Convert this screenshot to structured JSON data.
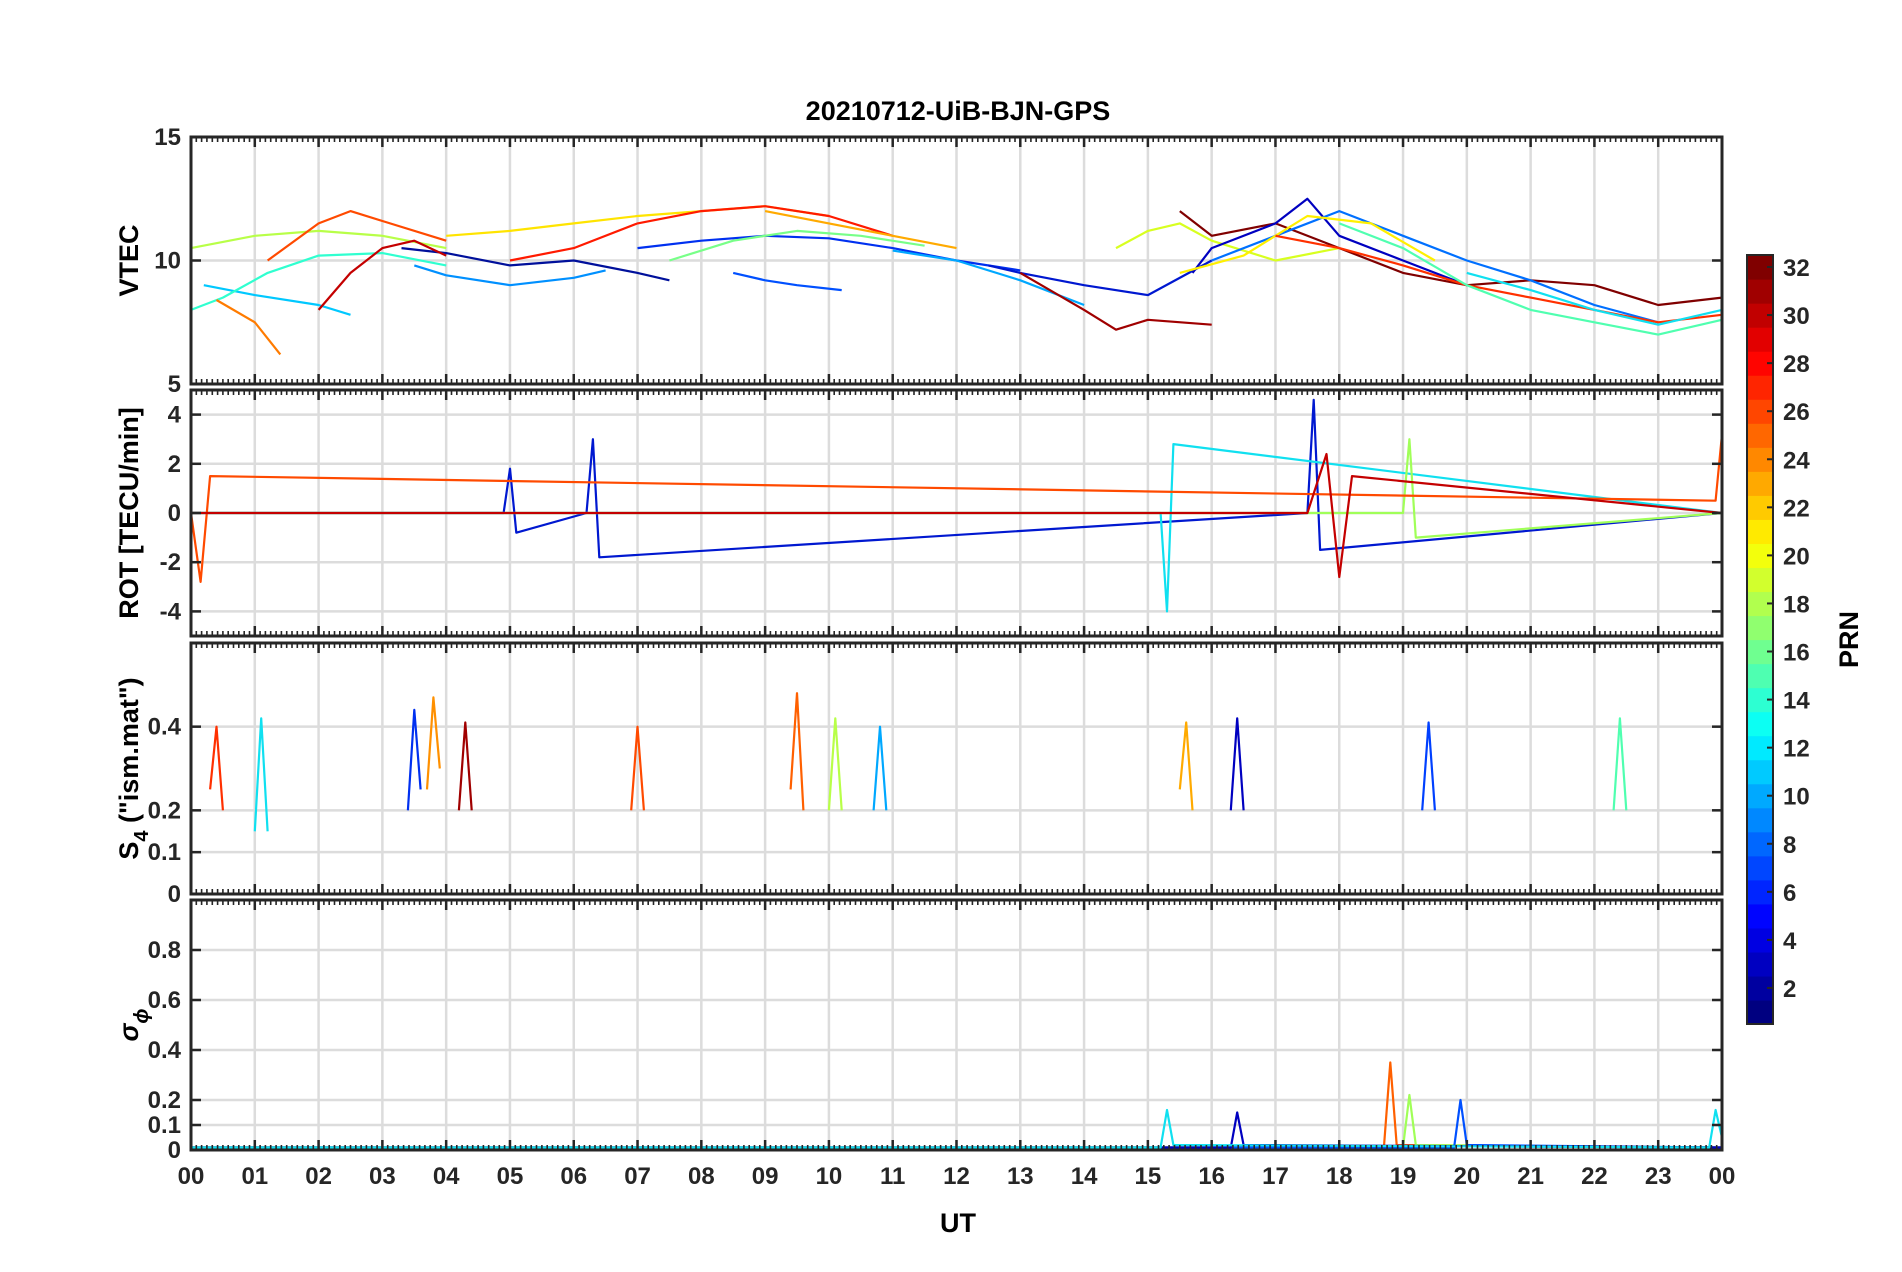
{
  "figure": {
    "title": "20210712-UiB-BJN-GPS"
  },
  "chart_data": {
    "type": "line",
    "title": "20210712-UiB-BJN-GPS",
    "x": {
      "label": "UT",
      "range": [
        0,
        24
      ],
      "ticks": [
        0,
        1,
        2,
        3,
        4,
        5,
        6,
        7,
        8,
        9,
        10,
        11,
        12,
        13,
        14,
        15,
        16,
        17,
        18,
        19,
        20,
        21,
        22,
        23,
        24
      ],
      "tick_labels": [
        "00",
        "01",
        "02",
        "03",
        "04",
        "05",
        "06",
        "07",
        "08",
        "09",
        "10",
        "11",
        "12",
        "13",
        "14",
        "15",
        "16",
        "17",
        "18",
        "19",
        "20",
        "21",
        "22",
        "23",
        "00"
      ]
    },
    "panels": [
      {
        "key": "vtec",
        "ylabel": "VTEC",
        "ylim": [
          5,
          15
        ],
        "yticks": [
          5,
          10,
          15
        ],
        "ytick_labels": [
          "5",
          "10",
          "15"
        ],
        "series": [
          {
            "prn": 2,
            "color": "#00109b",
            "x": [
              3.3,
              4,
              5,
              6,
              7,
              7.5
            ],
            "y": [
              10.5,
              10.3,
              9.8,
              10.0,
              9.5,
              9.2
            ]
          },
          {
            "prn": 6,
            "color": "#0050ff",
            "x": [
              8.5,
              9,
              9.5,
              10.2
            ],
            "y": [
              9.5,
              9.2,
              9.0,
              8.8
            ]
          },
          {
            "prn": 12,
            "color": "#00c8ff",
            "x": [
              0.2,
              1,
              2,
              2.5
            ],
            "y": [
              9.0,
              8.6,
              8.2,
              7.8
            ]
          },
          {
            "prn": 14,
            "color": "#30ffd0",
            "x": [
              0,
              0.5,
              1.2,
              2,
              3,
              4
            ],
            "y": [
              8.0,
              8.5,
              9.5,
              10.2,
              10.3,
              9.8
            ]
          },
          {
            "prn": 18,
            "color": "#b8ff48",
            "x": [
              0,
              1,
              2,
              3,
              4
            ],
            "y": [
              10.5,
              11.0,
              11.2,
              11.0,
              10.5
            ]
          },
          {
            "prn": 24,
            "color": "#ff7b00",
            "x": [
              0.4,
              1,
              1.4
            ],
            "y": [
              8.4,
              7.5,
              6.2
            ]
          },
          {
            "prn": 26,
            "color": "#ff4a00",
            "x": [
              1.2,
              2,
              2.5,
              3,
              4
            ],
            "y": [
              10.0,
              11.5,
              12.0,
              11.6,
              10.8
            ]
          },
          {
            "prn": 30,
            "color": "#c40000",
            "x": [
              2.0,
              2.5,
              3,
              3.5,
              4
            ],
            "y": [
              8.0,
              9.5,
              10.5,
              10.8,
              10.2
            ]
          },
          {
            "prn": 10,
            "color": "#0090ff",
            "x": [
              3.5,
              4,
              5,
              6,
              6.5
            ],
            "y": [
              9.8,
              9.4,
              9.0,
              9.3,
              9.6
            ]
          },
          {
            "prn": 20,
            "color": "#ffe400",
            "x": [
              4,
              5,
              6,
              7,
              8,
              9,
              10
            ],
            "y": [
              11.0,
              11.2,
              11.5,
              11.8,
              12.0,
              12.2,
              11.8
            ]
          },
          {
            "prn": 28,
            "color": "#ff1a00",
            "x": [
              5,
              6,
              7,
              8,
              9,
              10,
              11
            ],
            "y": [
              10.0,
              10.5,
              11.5,
              12.0,
              12.2,
              11.8,
              11.0
            ]
          },
          {
            "prn": 8,
            "color": "#0030f0",
            "x": [
              7,
              8,
              9,
              10,
              11,
              12,
              13
            ],
            "y": [
              10.5,
              10.8,
              11.0,
              10.9,
              10.5,
              10.0,
              9.6
            ]
          },
          {
            "prn": 16,
            "color": "#78ff88",
            "x": [
              7.5,
              8.5,
              9.5,
              10.5,
              11.5
            ],
            "y": [
              10.0,
              10.8,
              11.2,
              11.0,
              10.6
            ]
          },
          {
            "prn": 22,
            "color": "#ffaa00",
            "x": [
              9,
              10,
              11,
              12
            ],
            "y": [
              12.0,
              11.5,
              11.0,
              10.5
            ]
          },
          {
            "prn": 4,
            "color": "#0018d0",
            "x": [
              12.5,
              13,
              14,
              15,
              16
            ],
            "y": [
              9.8,
              9.5,
              9.0,
              8.6,
              10.0
            ]
          },
          {
            "prn": 11,
            "color": "#00a8ff",
            "x": [
              11,
              12,
              13,
              14
            ],
            "y": [
              10.4,
              10.0,
              9.2,
              8.2
            ]
          },
          {
            "prn": 31,
            "color": "#a00000",
            "x": [
              13,
              14,
              14.5,
              15,
              16
            ],
            "y": [
              9.5,
              8.0,
              7.2,
              7.6,
              7.4
            ]
          },
          {
            "prn": 19,
            "color": "#d8ff20",
            "x": [
              14.5,
              15,
              15.5,
              16,
              17,
              18
            ],
            "y": [
              10.5,
              11.2,
              11.5,
              10.8,
              10.0,
              10.5
            ]
          },
          {
            "prn": 32,
            "color": "#800000",
            "x": [
              15.5,
              16,
              17,
              18,
              19,
              20,
              21,
              22,
              23,
              24
            ],
            "y": [
              12.0,
              11.0,
              11.5,
              10.5,
              9.5,
              9.0,
              9.2,
              9.0,
              8.2,
              8.5
            ]
          },
          {
            "prn": 3,
            "color": "#0000c0",
            "x": [
              15.7,
              16,
              17,
              17.5,
              18,
              19,
              20
            ],
            "y": [
              9.5,
              10.5,
              11.5,
              12.5,
              11.0,
              10.0,
              9.0
            ]
          },
          {
            "prn": 9,
            "color": "#0070ff",
            "x": [
              16,
              17,
              18,
              19,
              20,
              21,
              22,
              23
            ],
            "y": [
              10.0,
              11.0,
              12.0,
              11.0,
              10.0,
              9.2,
              8.2,
              7.5
            ]
          },
          {
            "prn": 21,
            "color": "#fff000",
            "x": [
              15.5,
              16.5,
              17.5,
              18.5,
              19.5
            ],
            "y": [
              9.5,
              10.2,
              11.8,
              11.5,
              10.0
            ]
          },
          {
            "prn": 27,
            "color": "#ff3000",
            "x": [
              17,
              18,
              19,
              20,
              21,
              22,
              23,
              24
            ],
            "y": [
              11.0,
              10.5,
              9.8,
              9.0,
              8.5,
              8.0,
              7.5,
              7.8
            ]
          },
          {
            "prn": 15,
            "color": "#50ffb0",
            "x": [
              18,
              19,
              20,
              21,
              22,
              23,
              24
            ],
            "y": [
              11.5,
              10.5,
              9.0,
              8.0,
              7.5,
              7.0,
              7.6
            ]
          },
          {
            "prn": 13,
            "color": "#10e0f0",
            "x": [
              20,
              21,
              22,
              23,
              24
            ],
            "y": [
              9.5,
              8.8,
              8.0,
              7.4,
              8.0
            ]
          }
        ]
      },
      {
        "key": "rot",
        "ylabel": "ROT [TECU/min]",
        "ylim": [
          -5,
          5
        ],
        "yticks": [
          -4,
          -2,
          0,
          2,
          4
        ],
        "ytick_labels": [
          "-4",
          "-2",
          "0",
          "2",
          "4"
        ],
        "series": [
          {
            "prn": 4,
            "color": "#0018d0",
            "x": [
              0,
              4.9,
              5.0,
              5.1,
              6.2,
              6.3,
              6.4,
              17.5,
              17.6,
              17.7,
              24
            ],
            "y": [
              0,
              0,
              1.8,
              -0.8,
              0,
              3.0,
              -1.8,
              0,
              4.6,
              -1.5,
              0
            ]
          },
          {
            "prn": 13,
            "color": "#10e0f0",
            "x": [
              0,
              15.2,
              15.3,
              15.4,
              24
            ],
            "y": [
              0,
              0,
              -4.0,
              2.8,
              0
            ]
          },
          {
            "prn": 17,
            "color": "#a0ff58",
            "x": [
              0,
              19.0,
              19.1,
              19.2,
              24
            ],
            "y": [
              0,
              0,
              3.0,
              -1.0,
              0
            ]
          },
          {
            "prn": 26,
            "color": "#ff4a00",
            "x": [
              0,
              0.15,
              0.3,
              23.9,
              24
            ],
            "y": [
              0,
              -2.8,
              1.5,
              0.5,
              3.2
            ]
          },
          {
            "prn": 30,
            "color": "#c40000",
            "x": [
              0,
              17.5,
              17.8,
              18.0,
              18.2,
              24
            ],
            "y": [
              0,
              0,
              2.4,
              -2.6,
              1.5,
              0
            ]
          }
        ]
      },
      {
        "key": "s4",
        "ylabel": "S₄ (\"ism.mat\")",
        "ylabel_main": "S",
        "ylabel_sub": "4",
        "ylabel_rest": " (\"ism.mat\")",
        "ylim": [
          0,
          0.6
        ],
        "yticks": [
          0,
          0.1,
          0.2,
          0.4
        ],
        "ytick_labels": [
          "0",
          "0.1",
          "0.2",
          "0.4"
        ],
        "series": [
          {
            "prn": 27,
            "color": "#ff3000",
            "x": [
              0.3,
              0.4,
              0.5
            ],
            "y": [
              0.25,
              0.4,
              0.2
            ]
          },
          {
            "prn": 13,
            "color": "#10e0f0",
            "x": [
              1.0,
              1.1,
              1.2
            ],
            "y": [
              0.15,
              0.42,
              0.15
            ]
          },
          {
            "prn": 8,
            "color": "#0030f0",
            "x": [
              3.4,
              3.5,
              3.6
            ],
            "y": [
              0.2,
              0.44,
              0.25
            ]
          },
          {
            "prn": 23,
            "color": "#ff9000",
            "x": [
              3.7,
              3.8,
              3.9
            ],
            "y": [
              0.25,
              0.47,
              0.3
            ]
          },
          {
            "prn": 31,
            "color": "#a00000",
            "x": [
              4.2,
              4.3,
              4.4
            ],
            "y": [
              0.2,
              0.41,
              0.2
            ]
          },
          {
            "prn": 26,
            "color": "#ff4a00",
            "x": [
              6.9,
              7.0,
              7.1
            ],
            "y": [
              0.2,
              0.4,
              0.2
            ]
          },
          {
            "prn": 25,
            "color": "#ff6000",
            "x": [
              9.4,
              9.5,
              9.6
            ],
            "y": [
              0.25,
              0.48,
              0.2
            ]
          },
          {
            "prn": 18,
            "color": "#b8ff48",
            "x": [
              10.0,
              10.1,
              10.2
            ],
            "y": [
              0.2,
              0.42,
              0.2
            ]
          },
          {
            "prn": 11,
            "color": "#00a8ff",
            "x": [
              10.7,
              10.8,
              10.9
            ],
            "y": [
              0.2,
              0.4,
              0.2
            ]
          },
          {
            "prn": 22,
            "color": "#ffaa00",
            "x": [
              15.5,
              15.6,
              15.7
            ],
            "y": [
              0.25,
              0.41,
              0.2
            ]
          },
          {
            "prn": 3,
            "color": "#0000c0",
            "x": [
              16.3,
              16.4,
              16.5
            ],
            "y": [
              0.2,
              0.42,
              0.2
            ]
          },
          {
            "prn": 7,
            "color": "#0040ff",
            "x": [
              19.3,
              19.4,
              19.5
            ],
            "y": [
              0.2,
              0.41,
              0.2
            ]
          },
          {
            "prn": 15,
            "color": "#50ffb0",
            "x": [
              22.3,
              22.4,
              22.5
            ],
            "y": [
              0.2,
              0.42,
              0.2
            ]
          }
        ]
      },
      {
        "key": "sigma",
        "ylabel": "σ ϕ",
        "ylabel_main": "σ",
        "ylabel_sub": "ϕ",
        "ylim": [
          0,
          1
        ],
        "yticks": [
          0,
          0.1,
          0.2,
          0.4,
          0.6,
          0.8
        ],
        "ytick_labels": [
          "0",
          "0.1",
          "0.2",
          "0.4",
          "0.6",
          "0.8"
        ],
        "series": [
          {
            "prn": 25,
            "color": "#ff6000",
            "x": [
              0,
              18.7,
              18.8,
              18.9,
              24
            ],
            "y": [
              0.01,
              0.01,
              0.35,
              0.02,
              0.01
            ]
          },
          {
            "prn": 17,
            "color": "#a0ff58",
            "x": [
              0,
              19.0,
              19.1,
              19.2,
              24
            ],
            "y": [
              0.01,
              0.01,
              0.22,
              0.02,
              0.01
            ]
          },
          {
            "prn": 6,
            "color": "#0050ff",
            "x": [
              0,
              19.8,
              19.9,
              20.0,
              24
            ],
            "y": [
              0.01,
              0.01,
              0.2,
              0.02,
              0.01
            ]
          },
          {
            "prn": 3,
            "color": "#0000c0",
            "x": [
              0,
              16.3,
              16.4,
              16.5,
              24
            ],
            "y": [
              0.01,
              0.01,
              0.15,
              0.02,
              0.01
            ]
          },
          {
            "prn": 13,
            "color": "#10e0f0",
            "x": [
              0,
              15.2,
              15.3,
              15.4,
              23.8,
              23.9,
              24
            ],
            "y": [
              0.01,
              0.01,
              0.16,
              0.02,
              0.01,
              0.16,
              0.05
            ]
          }
        ]
      }
    ],
    "colorbar": {
      "label": "PRN",
      "range": [
        1,
        32
      ],
      "ticks": [
        2,
        4,
        6,
        8,
        10,
        12,
        14,
        16,
        18,
        20,
        22,
        24,
        26,
        28,
        30,
        32
      ],
      "tick_labels": [
        "2",
        "4",
        "6",
        "8",
        "10",
        "12",
        "14",
        "16",
        "18",
        "20",
        "22",
        "24",
        "26",
        "28",
        "30",
        "32"
      ],
      "colormap": "jet"
    }
  }
}
